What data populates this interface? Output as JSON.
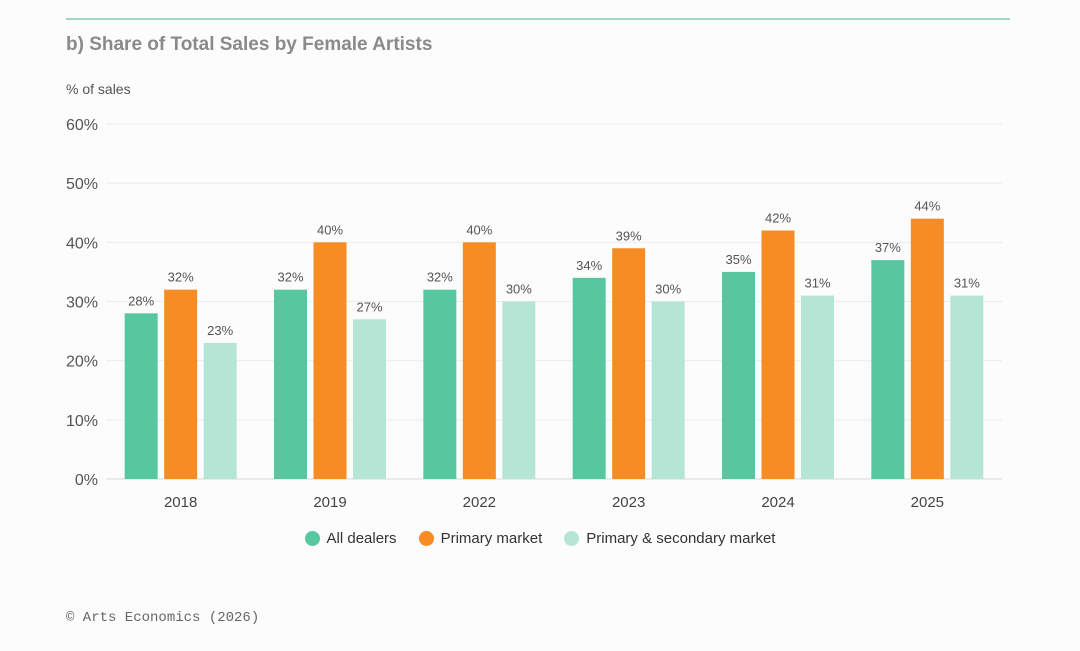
{
  "title": "b) Share of Total Sales by Female Artists",
  "footer": "© Arts Economics (2026)",
  "chart_data": {
    "type": "bar",
    "title": "b) Share of Total Sales by Female Artists",
    "xlabel": "",
    "ylabel": "% of sales",
    "ylim": [
      0,
      60
    ],
    "yticks": [
      "0%",
      "10%",
      "20%",
      "30%",
      "40%",
      "50%",
      "60%"
    ],
    "categories": [
      "2018",
      "2019",
      "2022",
      "2023",
      "2024",
      "2025"
    ],
    "series": [
      {
        "name": "All dealers",
        "color": "#57c7a0",
        "values": [
          28,
          32,
          32,
          34,
          35,
          37
        ],
        "labels": [
          "28%",
          "32%",
          "32%",
          "34%",
          "35%",
          "37%"
        ]
      },
      {
        "name": "Primary market",
        "color": "#f78b24",
        "values": [
          32,
          40,
          40,
          39,
          42,
          44
        ],
        "labels": [
          "32%",
          "40%",
          "40%",
          "39%",
          "42%",
          "44%"
        ]
      },
      {
        "name": "Primary & secondary market",
        "color": "#b5e6d5",
        "values": [
          23,
          27,
          30,
          30,
          31,
          31
        ],
        "labels": [
          "23%",
          "27%",
          "30%",
          "30%",
          "31%",
          "31%"
        ]
      }
    ],
    "grid": true,
    "legend": "bottom-center"
  }
}
